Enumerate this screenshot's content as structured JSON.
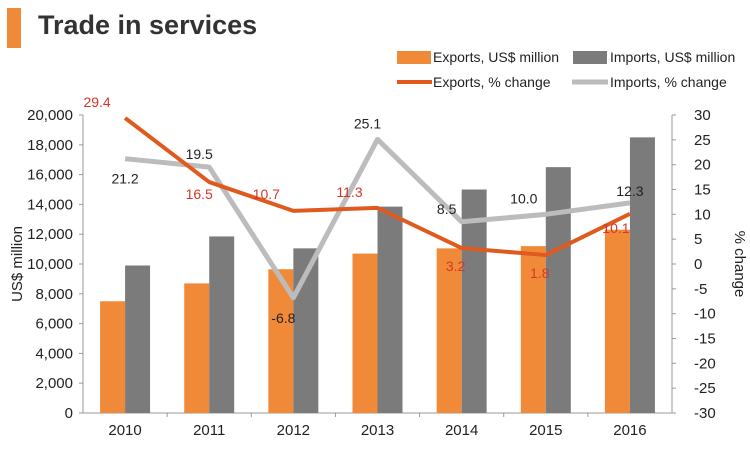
{
  "header": {
    "title": "Trade in services"
  },
  "colors": {
    "accent": "#ef8a38",
    "exports_bar": "#f08a38",
    "imports_bar": "#7b7b7b",
    "exports_line": "#e05a1e",
    "imports_line": "#bcbcbc",
    "exports_label": "#d8352a",
    "imports_label": "#222222"
  },
  "chart_data": {
    "type": "bar",
    "title": "Trade in services",
    "categories": [
      "2010",
      "2011",
      "2012",
      "2013",
      "2014",
      "2015",
      "2016"
    ],
    "ylabel": "US$ million",
    "y2label": "% change",
    "ylim": [
      0,
      20000
    ],
    "y2lim": [
      -30,
      30
    ],
    "yticks": [
      "0",
      "2,000",
      "4,000",
      "6,000",
      "8,000",
      "10,000",
      "12,000",
      "14,000",
      "16,000",
      "18,000",
      "20,000"
    ],
    "y2ticks": [
      "-30",
      "-25",
      "-20",
      "-15",
      "-10",
      "-5",
      "0",
      "5",
      "10",
      "15",
      "20",
      "25",
      "30"
    ],
    "series": [
      {
        "name": "Exports, US$ million",
        "kind": "bar",
        "axis": "left",
        "values": [
          7500,
          8700,
          9650,
          10700,
          11050,
          11200,
          12300
        ]
      },
      {
        "name": "Imports, US$ million",
        "kind": "bar",
        "axis": "left",
        "values": [
          9900,
          11850,
          11050,
          13850,
          15000,
          16500,
          18500
        ]
      },
      {
        "name": "Exports, % change",
        "kind": "line",
        "axis": "right",
        "values": [
          29.4,
          16.5,
          10.7,
          11.3,
          3.2,
          1.8,
          10.1
        ],
        "labels": [
          "29.4",
          "16.5",
          "10.7",
          "11.3",
          "3.2",
          "1.8",
          "10.1"
        ]
      },
      {
        "name": "Imports, % change",
        "kind": "line",
        "axis": "right",
        "values": [
          21.2,
          19.5,
          -6.8,
          25.1,
          8.5,
          10.0,
          12.3
        ],
        "labels": [
          "21.2",
          "19.5",
          "-6.8",
          "25.1",
          "8.5",
          "10.0",
          "12.3"
        ]
      }
    ],
    "legend_position": "top-right"
  }
}
